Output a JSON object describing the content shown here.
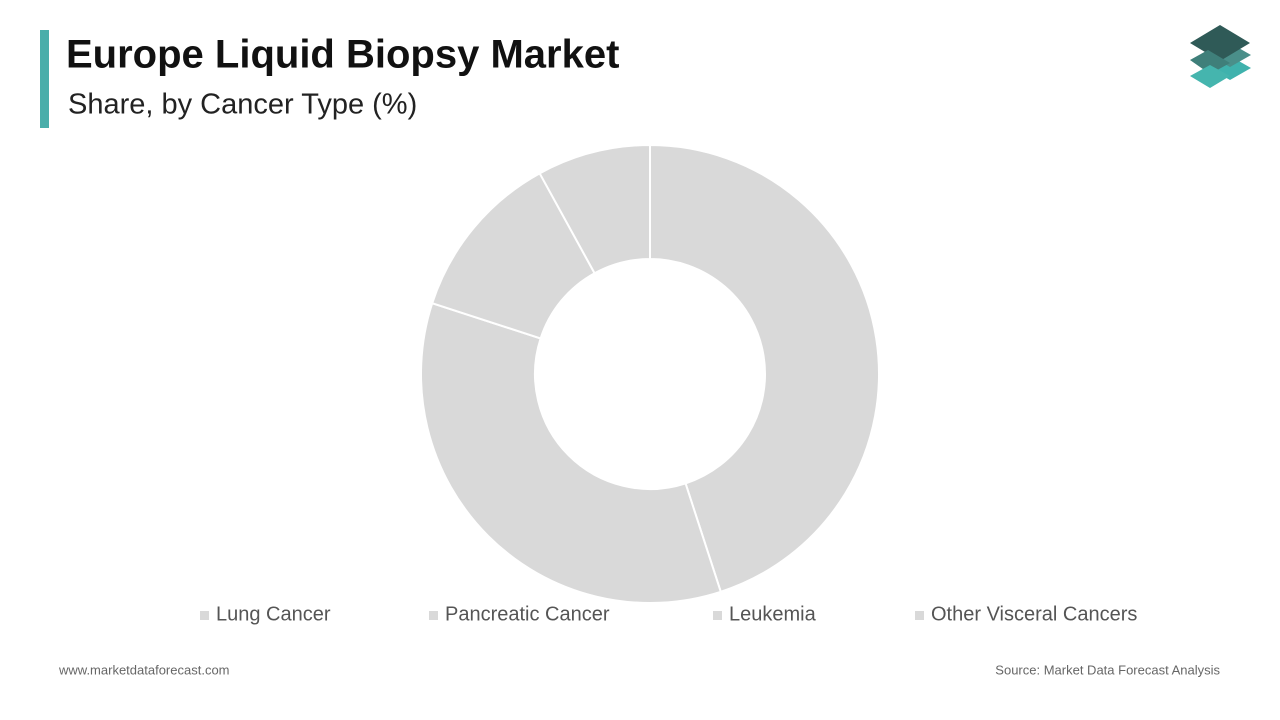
{
  "chart_data": {
    "type": "pie",
    "title": "Europe Liquid Biopsy Market",
    "subtitle": "Share, by Cancer Type (%)",
    "categories": [
      "Lung Cancer",
      "Pancreatic Cancer",
      "Leukemia",
      "Other Visceral Cancers"
    ],
    "values": [
      45,
      35,
      12,
      8
    ],
    "colors": [
      "#d9d9d9",
      "#d9d9d9",
      "#d9d9d9",
      "#d9d9d9"
    ],
    "donut": true,
    "legend": "bottom"
  },
  "footer": {
    "website": "www.marketdataforecast.com",
    "source": "Source: Market Data Forecast Analysis"
  }
}
